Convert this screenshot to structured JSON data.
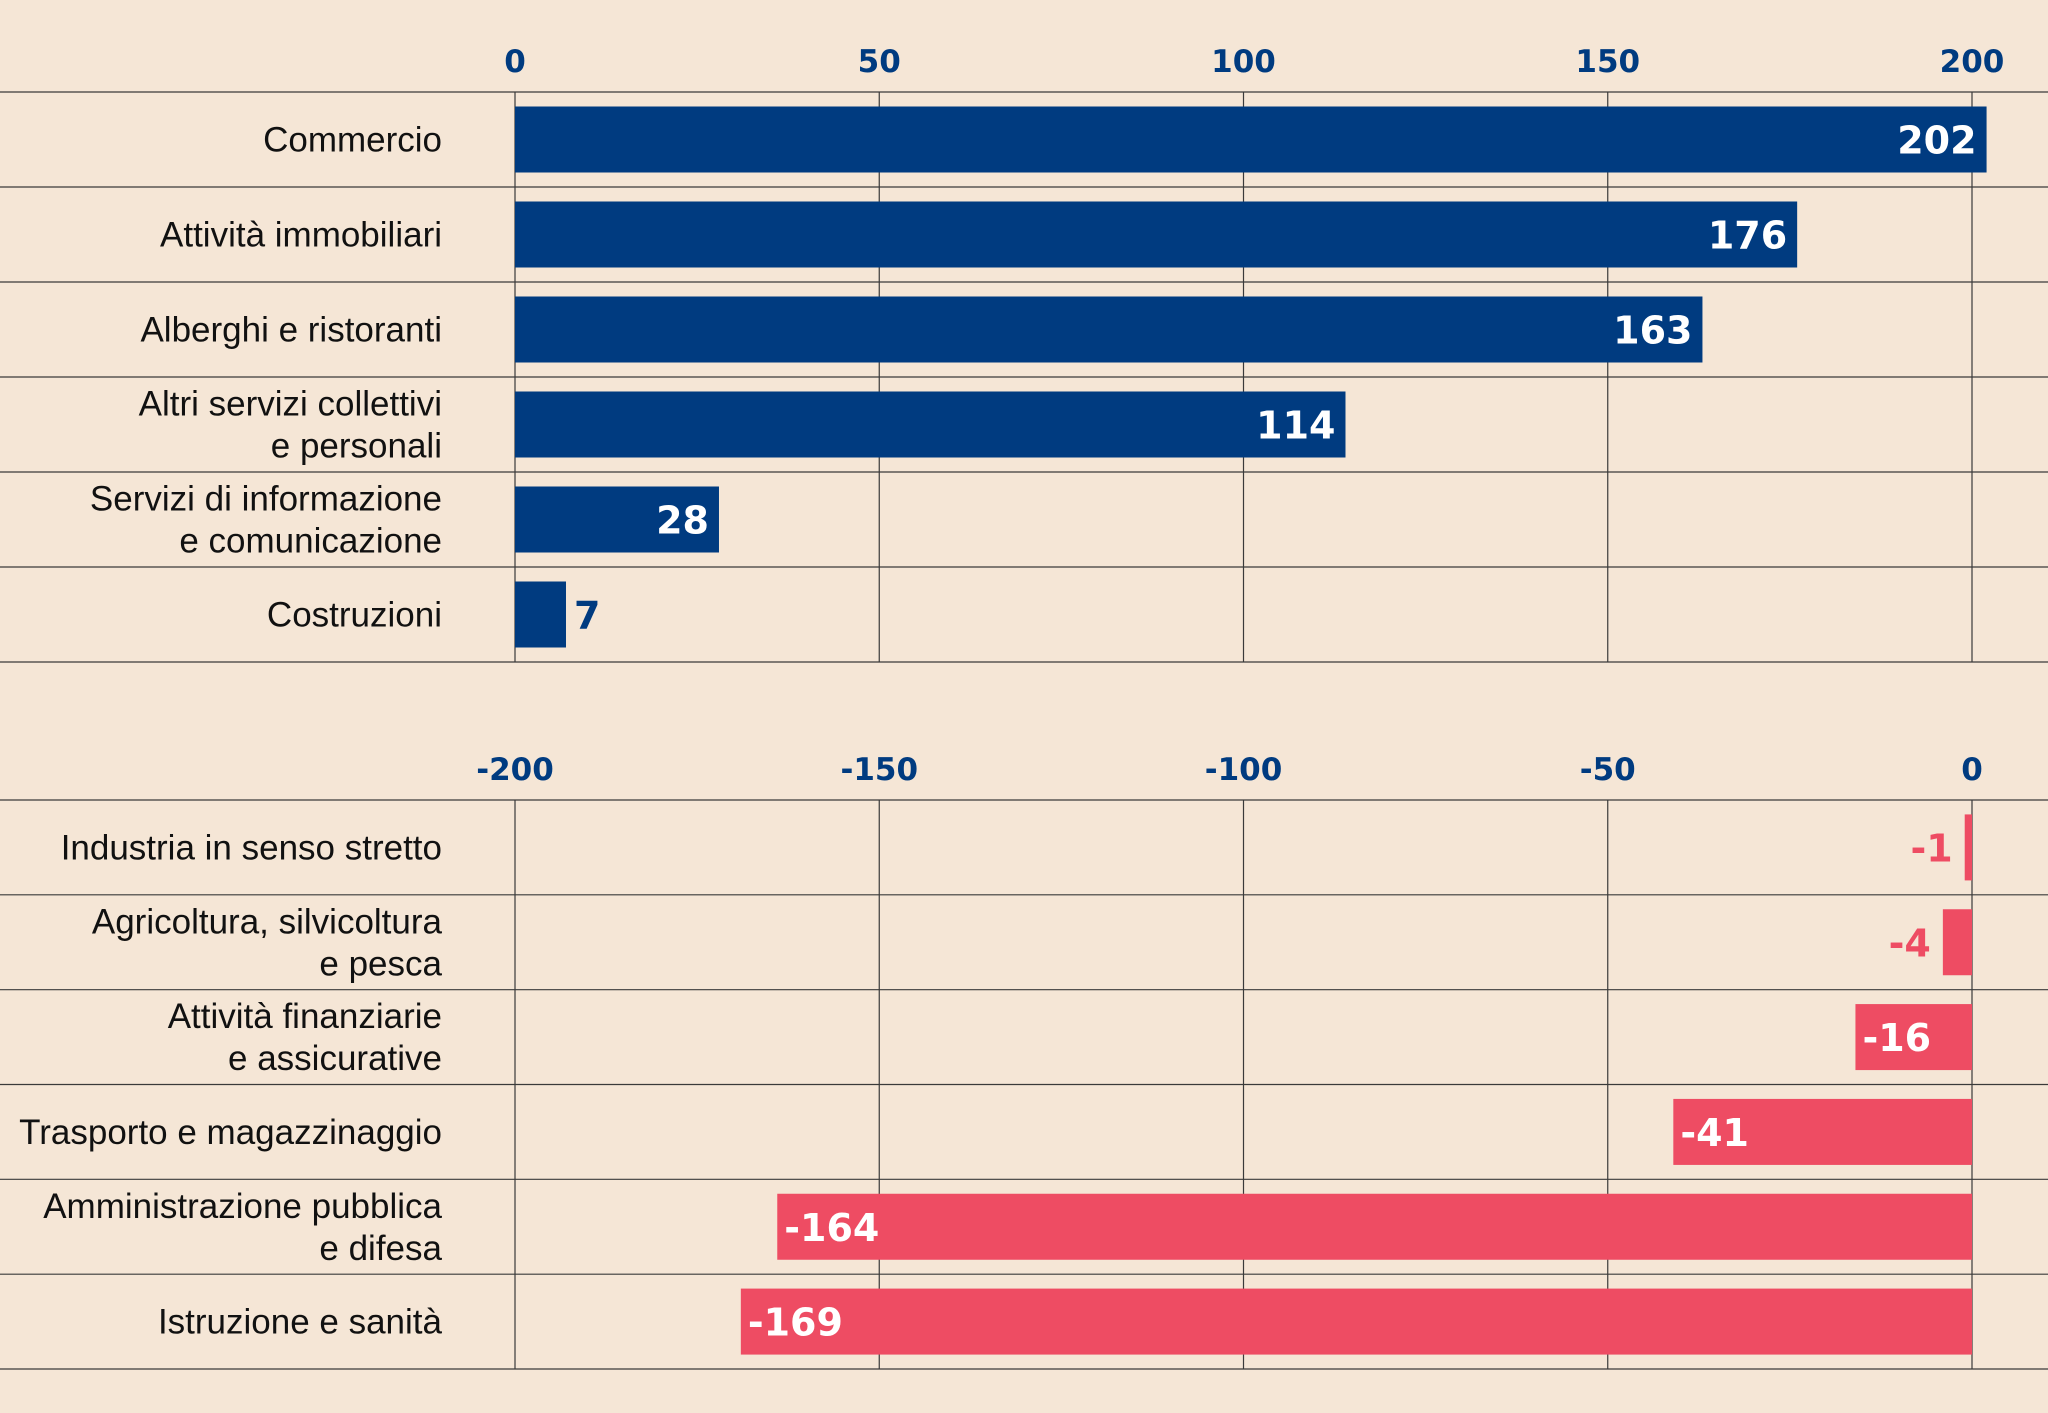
{
  "colors": {
    "background": "#f5e6d6",
    "positive": "#003b80",
    "negative": "#ee4c63",
    "grid": "#3a3a3a",
    "tick": "#003b80",
    "label_inside": "#ffffff",
    "text": "#111111"
  },
  "chart_data": [
    {
      "type": "bar",
      "orientation": "horizontal",
      "axis_position": "top",
      "xlim": [
        0,
        200
      ],
      "ticks": [
        0,
        50,
        100,
        150,
        200
      ],
      "tick_labels": [
        "0",
        "50",
        "100",
        "150",
        "200"
      ],
      "categories": [
        [
          "Commercio"
        ],
        [
          "Attività immobiliari"
        ],
        [
          "Alberghi e ristoranti"
        ],
        [
          "Altri servizi collettivi",
          "e personali"
        ],
        [
          "Servizi di informazione",
          "e comunicazione"
        ],
        [
          "Costruzioni"
        ]
      ],
      "values": [
        202,
        176,
        163,
        114,
        28,
        7
      ],
      "value_labels": [
        "202",
        "176",
        "163",
        "114",
        "28",
        "7"
      ],
      "grid": true
    },
    {
      "type": "bar",
      "orientation": "horizontal",
      "axis_position": "top",
      "xlim": [
        -200,
        0
      ],
      "ticks": [
        -200,
        -150,
        -100,
        -50,
        0
      ],
      "tick_labels": [
        "-200",
        "-150",
        "-100",
        "-50",
        "0"
      ],
      "categories": [
        [
          "Industria in senso stretto"
        ],
        [
          "Agricoltura, silvicoltura",
          "e pesca"
        ],
        [
          "Attività finanziarie",
          "e assicurative"
        ],
        [
          "Trasporto e magazzinaggio"
        ],
        [
          "Amministrazione pubblica",
          "e difesa"
        ],
        [
          "Istruzione e sanità"
        ]
      ],
      "values": [
        -1,
        -4,
        -16,
        -41,
        -164,
        -169
      ],
      "value_labels": [
        "-1",
        "-4",
        "-16",
        "-41",
        "-164",
        "-169"
      ],
      "grid": true
    }
  ]
}
